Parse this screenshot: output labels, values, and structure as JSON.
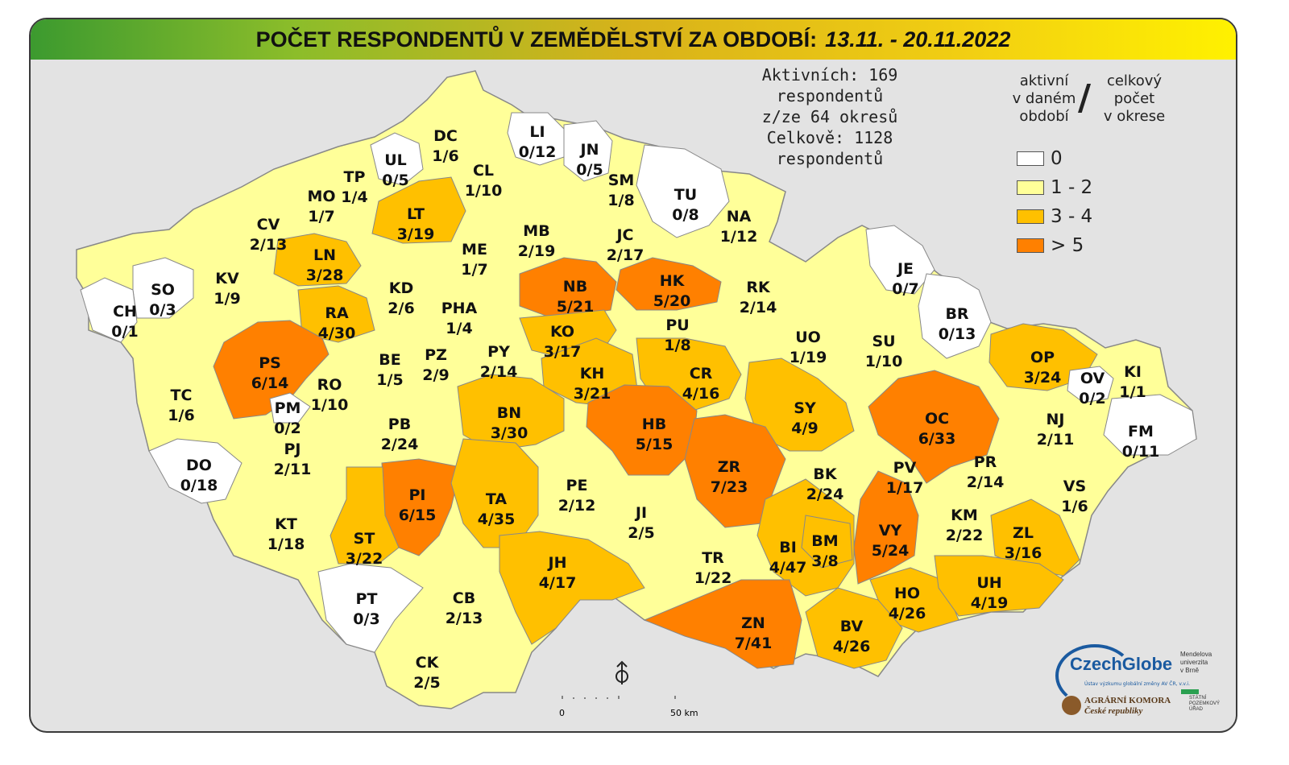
{
  "title": {
    "main": "POČET RESPONDENTŮ V ZEMĚDĚLSTVÍ ZA OBDOBÍ:",
    "date": "13.11. - 20.11.2022"
  },
  "summary": {
    "line1": "Aktivních: 169 respondentů",
    "line2": "z/ze 64 okresů",
    "line3": "Celkově: 1128 respondentů"
  },
  "legend": {
    "left_header": [
      "aktivní",
      "v daném",
      "období"
    ],
    "right_header": [
      "celkový",
      "počet",
      "v okrese"
    ],
    "classes": [
      {
        "label": "0",
        "color": "#ffffff"
      },
      {
        "label": "1 - 2",
        "color": "#ffff99"
      },
      {
        "label": "3 - 4",
        "color": "#ffc000"
      },
      {
        "label": "> 5",
        "color": "#ff8000"
      }
    ]
  },
  "scale": {
    "zero": "0",
    "max": "50 km"
  },
  "logos": {
    "czechglobe": "CzechGlobe",
    "czechglobe_sub": "Ústav výzkumu globální změny AV ČR, v.v.i.",
    "mendel": [
      "Mendelova",
      "univerzita",
      "v Brně"
    ],
    "komora": [
      "AGRÁRNÍ KOMORA",
      "České republiky"
    ],
    "spu": [
      "STÁTNÍ",
      "POZEMKOVÝ",
      "ÚŘAD"
    ]
  },
  "districts": [
    {
      "code": "DC",
      "value": "1/6",
      "color": "#ffff99"
    },
    {
      "code": "LI",
      "value": "0/12",
      "color": "#ffffff"
    },
    {
      "code": "UL",
      "value": "0/5",
      "color": "#ffffff"
    },
    {
      "code": "JN",
      "value": "0/5",
      "color": "#ffffff"
    },
    {
      "code": "TP",
      "value": "1/4",
      "color": "#ffff99"
    },
    {
      "code": "CL",
      "value": "1/10",
      "color": "#ffff99"
    },
    {
      "code": "SM",
      "value": "1/8",
      "color": "#ffff99"
    },
    {
      "code": "TU",
      "value": "0/8",
      "color": "#ffffff"
    },
    {
      "code": "MO",
      "value": "1/7",
      "color": "#ffff99"
    },
    {
      "code": "LT",
      "value": "3/19",
      "color": "#ffc000"
    },
    {
      "code": "NA",
      "value": "1/12",
      "color": "#ffff99"
    },
    {
      "code": "CV",
      "value": "2/13",
      "color": "#ffff99"
    },
    {
      "code": "MB",
      "value": "2/19",
      "color": "#ffff99"
    },
    {
      "code": "JC",
      "value": "2/17",
      "color": "#ffff99"
    },
    {
      "code": "ME",
      "value": "1/7",
      "color": "#ffff99"
    },
    {
      "code": "LN",
      "value": "3/28",
      "color": "#ffc000"
    },
    {
      "code": "KV",
      "value": "1/9",
      "color": "#ffff99"
    },
    {
      "code": "NB",
      "value": "5/21",
      "color": "#ff8000"
    },
    {
      "code": "HK",
      "value": "5/20",
      "color": "#ff8000"
    },
    {
      "code": "RK",
      "value": "2/14",
      "color": "#ffff99"
    },
    {
      "code": "JE",
      "value": "0/7",
      "color": "#ffffff"
    },
    {
      "code": "SO",
      "value": "0/3",
      "color": "#ffffff"
    },
    {
      "code": "KD",
      "value": "2/6",
      "color": "#ffff99"
    },
    {
      "code": "CH",
      "value": "0/1",
      "color": "#ffffff"
    },
    {
      "code": "RA",
      "value": "4/30",
      "color": "#ffc000"
    },
    {
      "code": "PHA",
      "value": "1/4",
      "color": "#ffff99"
    },
    {
      "code": "KO",
      "value": "3/17",
      "color": "#ffc000"
    },
    {
      "code": "PU",
      "value": "1/8",
      "color": "#ffff99"
    },
    {
      "code": "BR",
      "value": "0/13",
      "color": "#ffffff"
    },
    {
      "code": "UO",
      "value": "1/19",
      "color": "#ffff99"
    },
    {
      "code": "SU",
      "value": "1/10",
      "color": "#ffff99"
    },
    {
      "code": "OP",
      "value": "3/24",
      "color": "#ffc000"
    },
    {
      "code": "PS",
      "value": "6/14",
      "color": "#ff8000"
    },
    {
      "code": "BE",
      "value": "1/5",
      "color": "#ffff99"
    },
    {
      "code": "PZ",
      "value": "2/9",
      "color": "#ffff99"
    },
    {
      "code": "PY",
      "value": "2/14",
      "color": "#ffff99"
    },
    {
      "code": "KI",
      "value": "1/1",
      "color": "#ffff99"
    },
    {
      "code": "OV",
      "value": "0/2",
      "color": "#ffffff"
    },
    {
      "code": "KH",
      "value": "3/21",
      "color": "#ffc000"
    },
    {
      "code": "CR",
      "value": "4/16",
      "color": "#ffc000"
    },
    {
      "code": "TC",
      "value": "1/6",
      "color": "#ffff99"
    },
    {
      "code": "RO",
      "value": "1/10",
      "color": "#ffff99"
    },
    {
      "code": "SY",
      "value": "4/9",
      "color": "#ffc000"
    },
    {
      "code": "OC",
      "value": "6/33",
      "color": "#ff8000"
    },
    {
      "code": "PM",
      "value": "0/2",
      "color": "#ffffff"
    },
    {
      "code": "BN",
      "value": "3/30",
      "color": "#ffc000"
    },
    {
      "code": "HB",
      "value": "5/15",
      "color": "#ff8000"
    },
    {
      "code": "NJ",
      "value": "2/11",
      "color": "#ffff99"
    },
    {
      "code": "FM",
      "value": "0/11",
      "color": "#ffffff"
    },
    {
      "code": "PB",
      "value": "2/24",
      "color": "#ffff99"
    },
    {
      "code": "PJ",
      "value": "2/11",
      "color": "#ffff99"
    },
    {
      "code": "DO",
      "value": "0/18",
      "color": "#ffffff"
    },
    {
      "code": "ZR",
      "value": "7/23",
      "color": "#ff8000"
    },
    {
      "code": "BK",
      "value": "2/24",
      "color": "#ffff99"
    },
    {
      "code": "PR",
      "value": "2/14",
      "color": "#ffff99"
    },
    {
      "code": "PE",
      "value": "2/12",
      "color": "#ffff99"
    },
    {
      "code": "PV",
      "value": "1/17",
      "color": "#ffff99"
    },
    {
      "code": "VS",
      "value": "1/6",
      "color": "#ffff99"
    },
    {
      "code": "PI",
      "value": "6/15",
      "color": "#ff8000"
    },
    {
      "code": "TA",
      "value": "4/35",
      "color": "#ffc000"
    },
    {
      "code": "JI",
      "value": "2/5",
      "color": "#ffff99"
    },
    {
      "code": "KM",
      "value": "2/22",
      "color": "#ffff99"
    },
    {
      "code": "KT",
      "value": "1/18",
      "color": "#ffff99"
    },
    {
      "code": "ZL",
      "value": "3/16",
      "color": "#ffc000"
    },
    {
      "code": "VY",
      "value": "5/24",
      "color": "#ff8000"
    },
    {
      "code": "BI",
      "value": "4/47",
      "color": "#ffc000"
    },
    {
      "code": "BM",
      "value": "3/8",
      "color": "#ffc000"
    },
    {
      "code": "ST",
      "value": "3/22",
      "color": "#ffc000"
    },
    {
      "code": "JH",
      "value": "4/17",
      "color": "#ffc000"
    },
    {
      "code": "TR",
      "value": "1/22",
      "color": "#ffff99"
    },
    {
      "code": "HO",
      "value": "4/26",
      "color": "#ffc000"
    },
    {
      "code": "UH",
      "value": "4/19",
      "color": "#ffc000"
    },
    {
      "code": "PT",
      "value": "0/3",
      "color": "#ffffff"
    },
    {
      "code": "CB",
      "value": "2/13",
      "color": "#ffff99"
    },
    {
      "code": "ZN",
      "value": "7/41",
      "color": "#ff8000"
    },
    {
      "code": "BV",
      "value": "4/26",
      "color": "#ffc000"
    },
    {
      "code": "CK",
      "value": "2/5",
      "color": "#ffff99"
    }
  ]
}
